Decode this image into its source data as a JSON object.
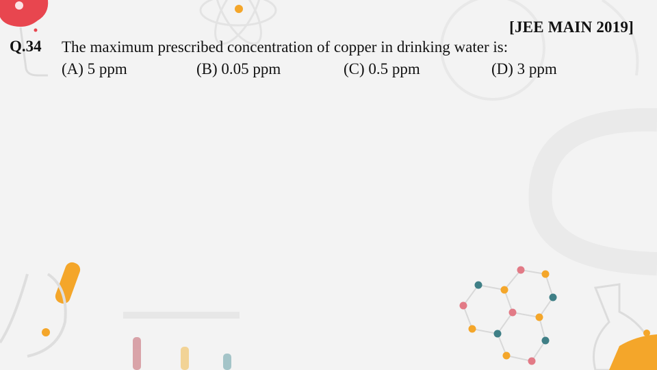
{
  "slide": {
    "source_tag": "[JEE MAIN 2019]",
    "question_number": "Q.34",
    "question_text": "The maximum prescribed concentration of copper in drinking water is:",
    "options": [
      {
        "label": "(A) 5 ppm"
      },
      {
        "label": "(B) 0.05 ppm"
      },
      {
        "label": "(C) 0.5 ppm"
      },
      {
        "label": "(D) 3 ppm"
      }
    ]
  },
  "theme": {
    "background": "#f3f3f3",
    "accent_orange": "#f4a62a",
    "accent_red": "#e8464f",
    "accent_teal": "#3f7f86",
    "accent_pink": "#e27a86"
  },
  "decorations": [
    "flask-illustration",
    "atom-illustration",
    "molecule-graphic",
    "test-tubes-illustration",
    "magnet-illustration"
  ]
}
